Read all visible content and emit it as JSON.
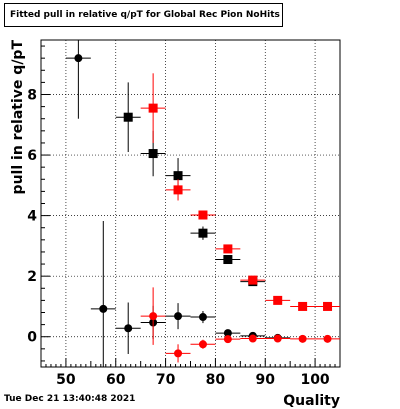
{
  "title": "Fitted pull in relative q/pT  for Global Rec Pion NoHits",
  "timestamp": "Tue Dec 21 13:40:48 2021",
  "chart_data": {
    "type": "scatter",
    "xlabel": "Quality",
    "ylabel": "pull in relative q/pT",
    "xlim": [
      45,
      105
    ],
    "ylim": [
      -1.0,
      9.8
    ],
    "xticks": [
      50,
      60,
      70,
      80,
      90,
      100
    ],
    "yticks": [
      0,
      2,
      4,
      6,
      8
    ],
    "grid": true,
    "series": [
      {
        "marker": "circle",
        "color": "#000000",
        "points": [
          {
            "x": 52.5,
            "y": 9.2,
            "xerr": 2.5,
            "yerr": 2.0
          },
          {
            "x": 57.5,
            "y": 0.92,
            "xerr": 2.5,
            "yerr": 2.9
          },
          {
            "x": 62.5,
            "y": 0.28,
            "xerr": 2.5,
            "yerr": 0.85
          },
          {
            "x": 67.5,
            "y": 0.47,
            "xerr": 2.5,
            "yerr": 0.55
          },
          {
            "x": 72.5,
            "y": 0.68,
            "xerr": 2.5,
            "yerr": 0.43
          },
          {
            "x": 77.5,
            "y": 0.65,
            "xerr": 2.5,
            "yerr": 0.2
          },
          {
            "x": 82.5,
            "y": 0.12,
            "xerr": 2.5,
            "yerr": 0.07
          },
          {
            "x": 87.5,
            "y": 0.03,
            "xerr": 2.5,
            "yerr": 0.05
          },
          {
            "x": 92.5,
            "y": -0.04,
            "xerr": 2.5,
            "yerr": 0.04
          }
        ]
      },
      {
        "marker": "circle",
        "color": "#ff0000",
        "points": [
          {
            "x": 67.5,
            "y": 0.68,
            "xerr": 2.5,
            "yerr": 0.95
          },
          {
            "x": 72.5,
            "y": -0.55,
            "xerr": 2.5,
            "yerr": 0.3
          },
          {
            "x": 77.5,
            "y": -0.25,
            "xerr": 2.5,
            "yerr": 0.15
          },
          {
            "x": 82.5,
            "y": -0.08,
            "xerr": 2.5,
            "yerr": 0.06
          },
          {
            "x": 87.5,
            "y": -0.06,
            "xerr": 2.5,
            "yerr": 0.04
          },
          {
            "x": 92.5,
            "y": -0.06,
            "xerr": 2.5,
            "yerr": 0.03
          },
          {
            "x": 97.5,
            "y": -0.07,
            "xerr": 2.5,
            "yerr": 0.03
          },
          {
            "x": 102.5,
            "y": -0.07,
            "xerr": 2.5,
            "yerr": 0.03
          }
        ]
      },
      {
        "marker": "square",
        "color": "#000000",
        "points": [
          {
            "x": 62.5,
            "y": 7.25,
            "xerr": 2.5,
            "yerr": 1.15
          },
          {
            "x": 67.5,
            "y": 6.05,
            "xerr": 2.5,
            "yerr": 0.75
          },
          {
            "x": 72.5,
            "y": 5.32,
            "xerr": 2.5,
            "yerr": 0.58
          },
          {
            "x": 77.5,
            "y": 3.42,
            "xerr": 2.5,
            "yerr": 0.22
          },
          {
            "x": 82.5,
            "y": 2.55,
            "xerr": 2.5,
            "yerr": 0.08
          },
          {
            "x": 87.5,
            "y": 1.82,
            "xerr": 2.5,
            "yerr": 0.06
          }
        ]
      },
      {
        "marker": "square",
        "color": "#ff0000",
        "points": [
          {
            "x": 67.5,
            "y": 7.55,
            "xerr": 2.5,
            "yerr": 1.15
          },
          {
            "x": 72.5,
            "y": 4.85,
            "xerr": 2.5,
            "yerr": 0.35
          },
          {
            "x": 77.5,
            "y": 4.02,
            "xerr": 2.5,
            "yerr": 0.12
          },
          {
            "x": 82.5,
            "y": 2.9,
            "xerr": 2.5,
            "yerr": 0.08
          },
          {
            "x": 87.5,
            "y": 1.87,
            "xerr": 2.5,
            "yerr": 0.05
          },
          {
            "x": 92.5,
            "y": 1.2,
            "xerr": 2.5,
            "yerr": 0.04
          },
          {
            "x": 97.5,
            "y": 1.0,
            "xerr": 2.5,
            "yerr": 0.03
          },
          {
            "x": 102.5,
            "y": 1.0,
            "xerr": 2.5,
            "yerr": 0.03
          }
        ]
      }
    ]
  }
}
